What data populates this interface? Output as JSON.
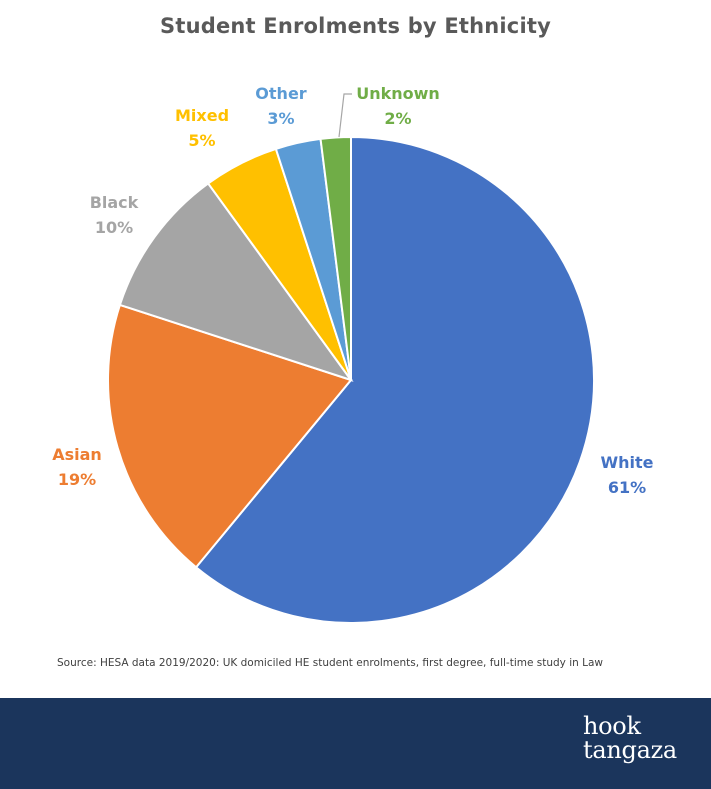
{
  "chart_data": {
    "type": "pie",
    "title": "Student Enrolments by Ethnicity",
    "slices": [
      {
        "label": "White",
        "value": 61,
        "display": "61%",
        "color": "#4472c4"
      },
      {
        "label": "Asian",
        "value": 19,
        "display": "19%",
        "color": "#ed7d31"
      },
      {
        "label": "Black",
        "value": 10,
        "display": "10%",
        "color": "#a5a5a5"
      },
      {
        "label": "Mixed",
        "value": 5,
        "display": "5%",
        "color": "#ffc000"
      },
      {
        "label": "Other",
        "value": 3,
        "display": "3%",
        "color": "#5b9bd5"
      },
      {
        "label": "Unknown",
        "value": 2,
        "display": "2%",
        "color": "#70ad47"
      }
    ]
  },
  "source": "Source: HESA data 2019/2020: UK domiciled HE student enrolments, first degree, full-time study in Law",
  "footer": {
    "logo_line1": "hook",
    "logo_line2": "tangaza",
    "background": "#1b355c"
  }
}
